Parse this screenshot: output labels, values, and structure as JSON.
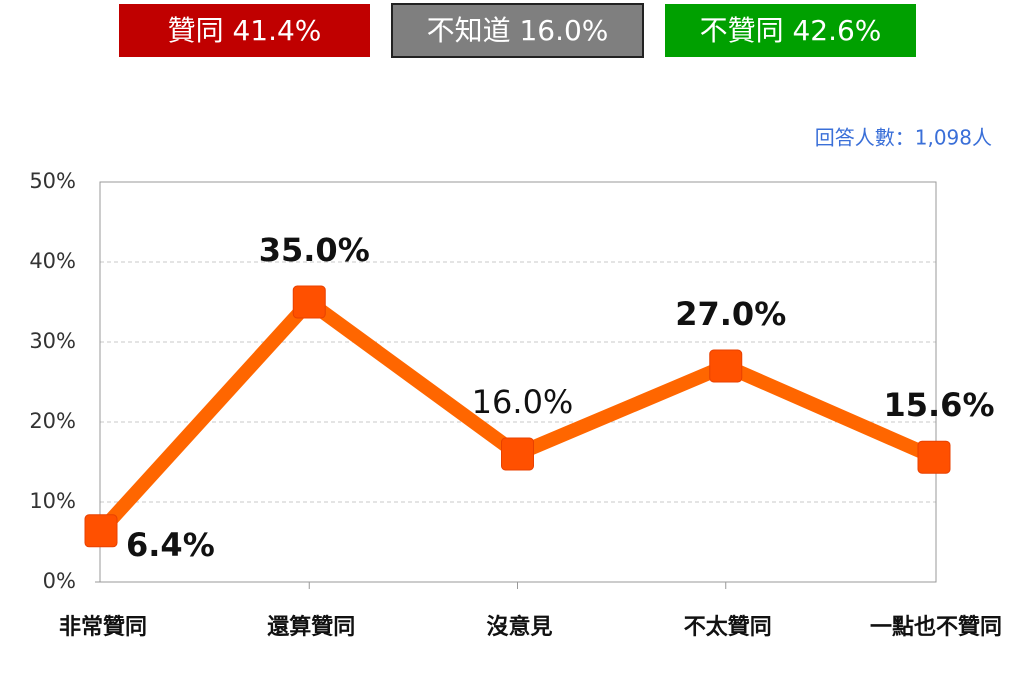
{
  "chart_data": {
    "type": "line",
    "summary": [
      {
        "label": "贊同 41.4%",
        "color": "#c00000"
      },
      {
        "label": "不知道 16.0%",
        "color": "#7f7f7f"
      },
      {
        "label": "不贊同 42.6%",
        "color": "#00a000"
      }
    ],
    "annotation": "回答人數：1,098人",
    "categories": [
      "非常贊同",
      "還算贊同",
      "沒意見",
      "不太贊同",
      "一點也不贊同"
    ],
    "values": [
      6.4,
      35.0,
      16.0,
      27.0,
      15.6
    ],
    "value_labels": [
      "6.4%",
      "35.0%",
      "16.0%",
      "27.0%",
      "15.6%"
    ],
    "color": "#ff6600",
    "ylim": [
      0,
      50
    ],
    "yticks": [
      {
        "value": 0,
        "label": "0%"
      },
      {
        "value": 10,
        "label": "10%"
      },
      {
        "value": 20,
        "label": "20%"
      },
      {
        "value": 30,
        "label": "30%"
      },
      {
        "value": 40,
        "label": "40%"
      },
      {
        "value": 50,
        "label": "50%"
      }
    ],
    "grid": true
  }
}
